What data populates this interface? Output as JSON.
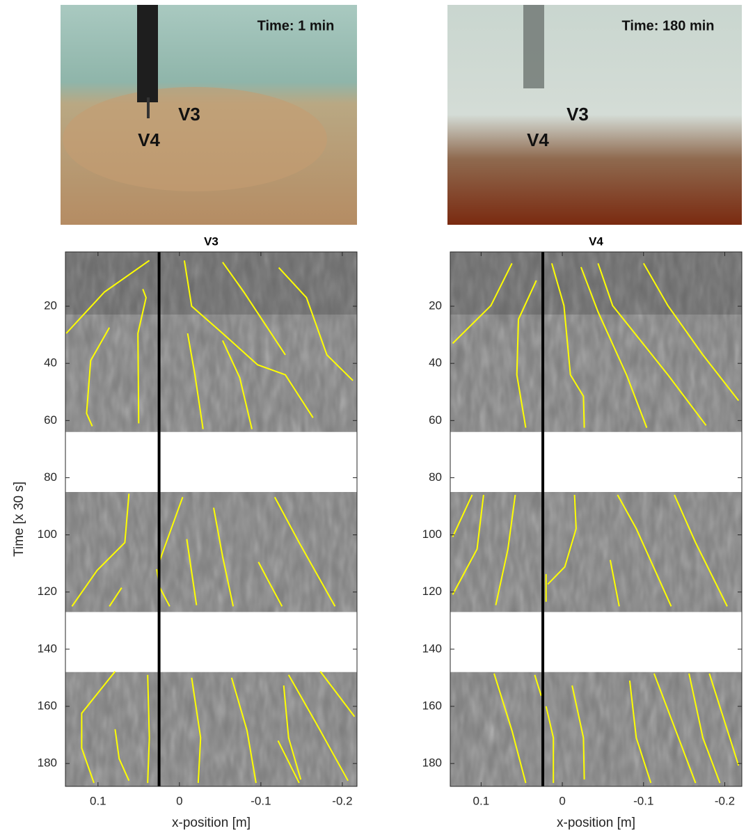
{
  "photos": [
    {
      "time_label": "Time: 1 min",
      "labels": [
        "V3",
        "V4"
      ]
    },
    {
      "time_label": "Time: 180 min",
      "labels": [
        "V3",
        "V4"
      ]
    }
  ],
  "chart_data": [
    {
      "type": "line",
      "title": "V3",
      "x_label": "x-position [m]",
      "y_label": "Time [x 30 s]",
      "xlim": [
        0.14,
        -0.218
      ],
      "ylim": [
        1,
        188
      ],
      "y_reversed": true,
      "xticks": [
        0.1,
        0,
        -0.1,
        -0.2
      ],
      "yticks": [
        20,
        40,
        60,
        80,
        100,
        120,
        140,
        160,
        180
      ],
      "line_color": "#ffff00",
      "reference_x": 0.025,
      "gaps": [
        [
          64,
          85
        ],
        [
          127,
          148
        ]
      ],
      "series": [
        {
          "x": [
            0.037,
            0.092,
            0.139
          ],
          "values": [
            4,
            15,
            29.5
          ]
        },
        {
          "x": [
            0.045,
            0.041,
            0.051,
            0.05
          ],
          "values": [
            14,
            17,
            29.5,
            61
          ]
        },
        {
          "x": [
            0.086,
            0.109,
            0.114,
            0.107
          ],
          "values": [
            27.5,
            39,
            57.5,
            62
          ]
        },
        {
          "x": [
            -0.006,
            -0.015,
            -0.053,
            -0.096,
            -0.13,
            -0.164
          ],
          "values": [
            4,
            20,
            29.5,
            40.5,
            44,
            59
          ]
        },
        {
          "x": [
            -0.053,
            -0.079,
            -0.13
          ],
          "values": [
            4.6,
            15,
            37
          ]
        },
        {
          "x": [
            -0.122,
            -0.156,
            -0.181,
            -0.213
          ],
          "values": [
            6.5,
            17,
            37,
            46
          ]
        },
        {
          "x": [
            -0.01,
            -0.019,
            -0.029
          ],
          "values": [
            29.5,
            44,
            63
          ]
        },
        {
          "x": [
            -0.053,
            -0.074,
            -0.089
          ],
          "values": [
            32,
            45,
            63
          ]
        },
        {
          "x": [
            0.062,
            0.067,
            0.101,
            0.132
          ],
          "values": [
            85.6,
            102.7,
            112.4,
            125
          ]
        },
        {
          "x": [
            0.071,
            0.086
          ],
          "values": [
            118.5,
            125
          ]
        },
        {
          "x": [
            -0.004,
            0.024
          ],
          "values": [
            86.8,
            108.8
          ]
        },
        {
          "x": [
            0.028,
            0.024,
            0.012
          ],
          "values": [
            112,
            118.5,
            125
          ]
        },
        {
          "x": [
            -0.009,
            -0.021
          ],
          "values": [
            101.5,
            124.6
          ]
        },
        {
          "x": [
            -0.042,
            -0.053,
            -0.066
          ],
          "values": [
            90.5,
            107.6,
            125
          ]
        },
        {
          "x": [
            -0.097,
            -0.109,
            -0.126
          ],
          "values": [
            109.5,
            116,
            125
          ]
        },
        {
          "x": [
            -0.117,
            -0.147,
            -0.191
          ],
          "values": [
            86.8,
            102.7,
            125
          ]
        },
        {
          "x": [
            0.079,
            0.12,
            0.12,
            0.105
          ],
          "values": [
            147.8,
            162.4,
            174.6,
            186.8
          ]
        },
        {
          "x": [
            0.079,
            0.074,
            0.062
          ],
          "values": [
            168,
            178.3,
            186
          ]
        },
        {
          "x": [
            0.039,
            0.037,
            0.039
          ],
          "values": [
            149,
            171,
            186.8
          ]
        },
        {
          "x": [
            -0.015,
            -0.026,
            -0.023
          ],
          "values": [
            150,
            171,
            186.8
          ]
        },
        {
          "x": [
            -0.064,
            -0.083,
            -0.094
          ],
          "values": [
            150,
            168.5,
            186.8
          ]
        },
        {
          "x": [
            -0.128,
            -0.134,
            -0.149
          ],
          "values": [
            152.7,
            171,
            185.6
          ]
        },
        {
          "x": [
            -0.121,
            -0.147
          ],
          "values": [
            172,
            186.8
          ]
        },
        {
          "x": [
            -0.134,
            -0.168,
            -0.207
          ],
          "values": [
            149,
            166,
            186
          ]
        },
        {
          "x": [
            -0.173,
            -0.215
          ],
          "values": [
            147.8,
            163.6
          ]
        }
      ]
    },
    {
      "type": "line",
      "title": "V4",
      "x_label": "x-position [m]",
      "xlim": [
        0.138,
        -0.221
      ],
      "ylim": [
        1,
        188
      ],
      "y_reversed": true,
      "xticks": [
        0.1,
        0,
        -0.1,
        -0.2
      ],
      "yticks": [
        20,
        40,
        60,
        80,
        100,
        120,
        140,
        160,
        180
      ],
      "line_color": "#ffff00",
      "reference_x": 0.024,
      "gaps": [
        [
          64,
          85
        ],
        [
          127,
          148
        ]
      ],
      "series": [
        {
          "x": [
            0.062,
            0.088,
            0.135
          ],
          "values": [
            5,
            19.8,
            33
          ]
        },
        {
          "x": [
            0.032,
            0.054,
            0.056,
            0.045
          ],
          "values": [
            11,
            24.6,
            44,
            62.5
          ]
        },
        {
          "x": [
            0.013,
            -0.002,
            -0.01,
            -0.026,
            -0.027
          ],
          "values": [
            5,
            19.8,
            44,
            51.5,
            62.5
          ]
        },
        {
          "x": [
            -0.023,
            -0.044,
            -0.079,
            -0.104
          ],
          "values": [
            6.3,
            22,
            44,
            62.5
          ]
        },
        {
          "x": [
            -0.044,
            -0.062,
            -0.13,
            -0.177
          ],
          "values": [
            5,
            19.8,
            44,
            61.7
          ]
        },
        {
          "x": [
            -0.1,
            -0.13,
            -0.173,
            -0.217
          ],
          "values": [
            5,
            19.8,
            37,
            53
          ]
        },
        {
          "x": [
            0.111,
            0.135
          ],
          "values": [
            86,
            100.7
          ]
        },
        {
          "x": [
            0.097,
            0.105,
            0.135
          ],
          "values": [
            86,
            105,
            120.9
          ]
        },
        {
          "x": [
            0.058,
            0.067,
            0.082
          ],
          "values": [
            86,
            105,
            124.6
          ]
        },
        {
          "x": [
            -0.015,
            -0.017,
            -0.003,
            0.018
          ],
          "values": [
            86,
            97.8,
            111.2,
            117.3
          ]
        },
        {
          "x": [
            0.02,
            0.02
          ],
          "values": [
            113.7,
            123.4
          ]
        },
        {
          "x": [
            -0.059,
            -0.07
          ],
          "values": [
            108.8,
            125
          ]
        },
        {
          "x": [
            -0.068,
            -0.091,
            -0.134
          ],
          "values": [
            86,
            97.8,
            125
          ]
        },
        {
          "x": [
            -0.138,
            -0.164,
            -0.203
          ],
          "values": [
            86,
            102.7,
            125
          ]
        },
        {
          "x": [
            0.084,
            0.062,
            0.045
          ],
          "values": [
            148.5,
            168.5,
            186.8
          ]
        },
        {
          "x": [
            0.034,
            0.026
          ],
          "values": [
            149,
            156.3
          ]
        },
        {
          "x": [
            0.02,
            0.011,
            0.011
          ],
          "values": [
            160,
            171,
            186.8
          ]
        },
        {
          "x": [
            -0.012,
            -0.026,
            -0.027
          ],
          "values": [
            152.7,
            171,
            185.6
          ]
        },
        {
          "x": [
            -0.083,
            -0.091,
            -0.109
          ],
          "values": [
            151,
            171,
            186.8
          ]
        },
        {
          "x": [
            -0.113,
            -0.143,
            -0.164
          ],
          "values": [
            148.5,
            171,
            186.8
          ]
        },
        {
          "x": [
            -0.156,
            -0.173,
            -0.194
          ],
          "values": [
            148.5,
            171,
            186.8
          ]
        },
        {
          "x": [
            -0.181,
            -0.217
          ],
          "values": [
            148.5,
            180.7
          ]
        }
      ]
    }
  ]
}
